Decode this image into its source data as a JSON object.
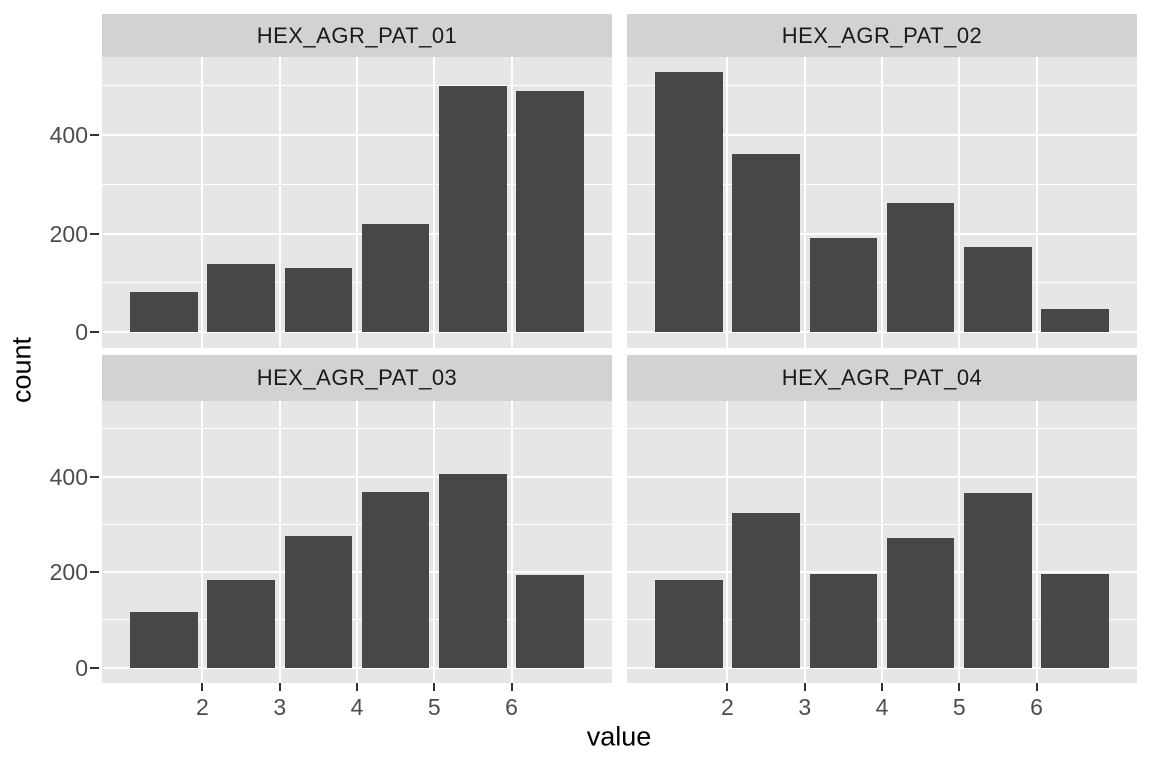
{
  "chart_data": {
    "type": "bar",
    "subtype": "faceted_histogram",
    "title": "",
    "xlabel": "value",
    "ylabel": "count",
    "facets": [
      {
        "title": "HEX_AGR_PAT_01",
        "values": [
          82,
          138,
          130,
          220,
          500,
          490
        ]
      },
      {
        "title": "HEX_AGR_PAT_02",
        "values": [
          528,
          362,
          191,
          261,
          172,
          47
        ]
      },
      {
        "title": "HEX_AGR_PAT_03",
        "values": [
          117,
          184,
          276,
          368,
          405,
          194
        ]
      },
      {
        "title": "HEX_AGR_PAT_04",
        "values": [
          184,
          323,
          197,
          271,
          365,
          196
        ]
      }
    ],
    "bin_centers": [
      1.5,
      2.5,
      3.5,
      4.5,
      5.5,
      6.5
    ],
    "bar_width": 0.875,
    "xlim": [
      0.7,
      7.3
    ],
    "ylim": [
      -32,
      558
    ],
    "x_breaks": [
      2,
      3,
      4,
      5,
      6
    ],
    "x_tick_labels": [
      "2",
      "3",
      "4",
      "5",
      "6"
    ],
    "y_breaks": [
      0,
      200,
      400
    ],
    "y_tick_labels": [
      "0",
      "200",
      "400"
    ],
    "y_minor_breaks": [
      100,
      300,
      500
    ],
    "grid": true,
    "legend": "none",
    "colors": {
      "bar_fill": "#474747",
      "panel_background": "#E6E6E6",
      "strip_background": "#D2D2D2",
      "grid_line": "#FFFFFF",
      "axis_text": "#4D4D4D",
      "strip_text": "#1A1A1A",
      "axis_title": "#000000",
      "tick_mark": "#333333",
      "figure_background": "#FFFFFF"
    }
  }
}
